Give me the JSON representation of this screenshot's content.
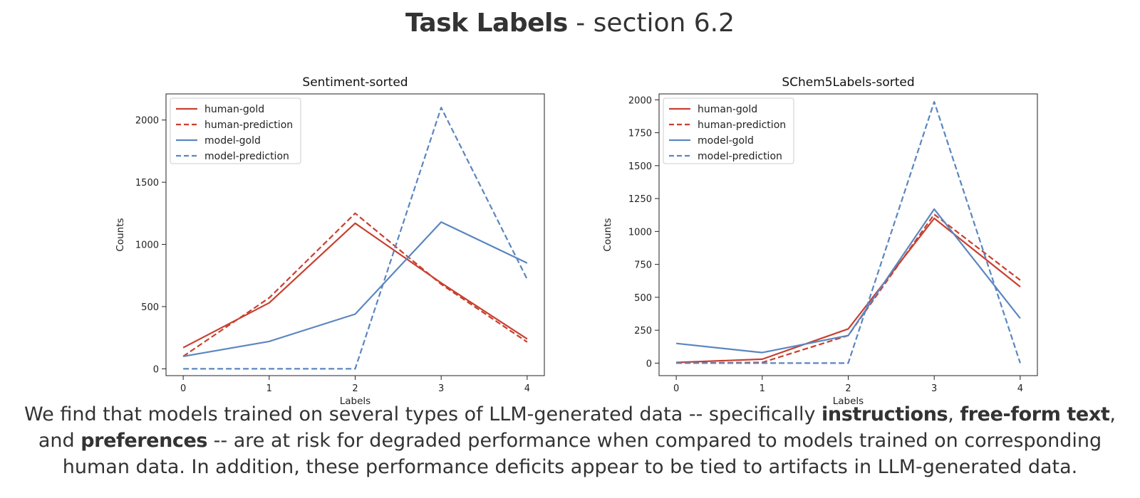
{
  "title": {
    "bold": "Task Labels",
    "rest": " - section 6.2"
  },
  "caption": {
    "p1": "We find that models trained on several types of LLM-generated data -- specifically ",
    "b1": "instructions",
    "p2": ", ",
    "b2": "free-form text",
    "p3": ", and ",
    "b3": "preferences",
    "p4": " -- are at risk for degraded performance when compared to models trained on corresponding human data. In addition, these performance deficits appear to be tied to artifacts in LLM-generated data."
  },
  "colors": {
    "human": "#c8402f",
    "model": "#5b86bf"
  },
  "chart_data": [
    {
      "type": "line",
      "title": "Sentiment-sorted",
      "xlabel": "Labels",
      "ylabel": "Counts",
      "x": [
        0,
        1,
        2,
        3,
        4
      ],
      "xticks": [
        0,
        1,
        2,
        3,
        4
      ],
      "xlim": [
        -0.2,
        4.2
      ],
      "yticks": [
        0,
        500,
        1000,
        1500,
        2000
      ],
      "ylim": [
        -55,
        2210
      ],
      "grid": false,
      "legend_position": "top-left",
      "series": [
        {
          "name": "human-gold",
          "color": "#c8402f",
          "dashed": false,
          "values": [
            170,
            530,
            1170,
            690,
            240
          ]
        },
        {
          "name": "human-prediction",
          "color": "#c8402f",
          "dashed": true,
          "values": [
            100,
            570,
            1250,
            680,
            215
          ]
        },
        {
          "name": "model-gold",
          "color": "#5b86bf",
          "dashed": false,
          "values": [
            100,
            220,
            440,
            1180,
            850
          ]
        },
        {
          "name": "model-prediction",
          "color": "#5b86bf",
          "dashed": true,
          "values": [
            0,
            0,
            0,
            2100,
            720
          ]
        }
      ]
    },
    {
      "type": "line",
      "title": "SChem5Labels-sorted",
      "xlabel": "Labels",
      "ylabel": "Counts",
      "x": [
        0,
        1,
        2,
        3,
        4
      ],
      "xticks": [
        0,
        1,
        2,
        3,
        4
      ],
      "xlim": [
        -0.2,
        4.2
      ],
      "yticks": [
        0,
        250,
        500,
        750,
        1000,
        1250,
        1500,
        1750,
        2000
      ],
      "ylim": [
        -95,
        2045
      ],
      "grid": false,
      "legend_position": "top-left",
      "series": [
        {
          "name": "human-gold",
          "color": "#c8402f",
          "dashed": false,
          "values": [
            5,
            30,
            260,
            1100,
            580
          ]
        },
        {
          "name": "human-prediction",
          "color": "#c8402f",
          "dashed": true,
          "values": [
            0,
            5,
            210,
            1130,
            630
          ]
        },
        {
          "name": "model-gold",
          "color": "#5b86bf",
          "dashed": false,
          "values": [
            150,
            80,
            210,
            1170,
            340
          ]
        },
        {
          "name": "model-prediction",
          "color": "#5b86bf",
          "dashed": true,
          "values": [
            0,
            0,
            0,
            1985,
            0
          ]
        }
      ]
    }
  ]
}
